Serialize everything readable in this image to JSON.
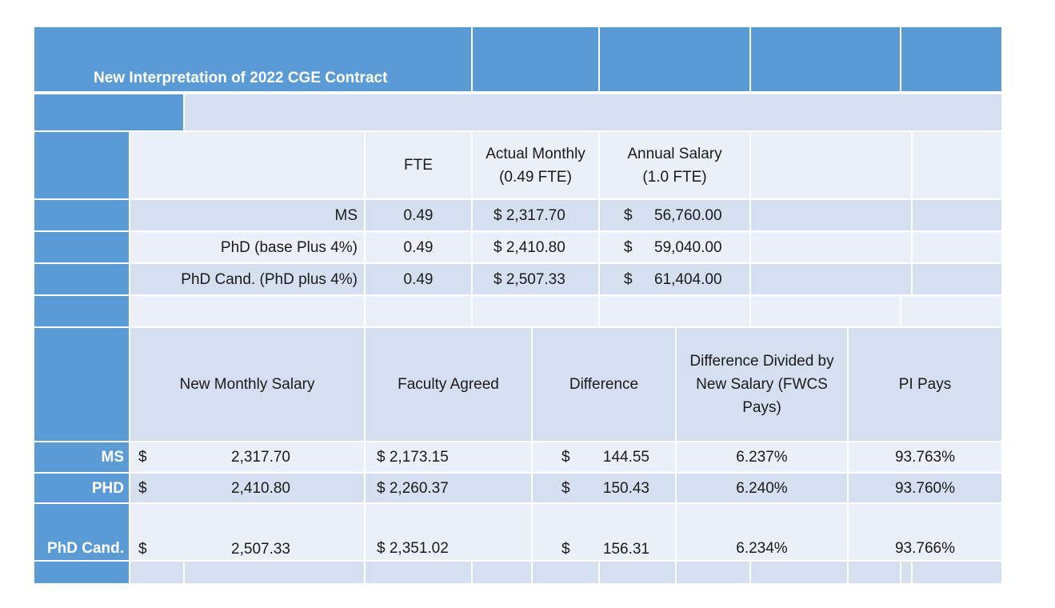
{
  "title": "New Interpretation of 2022 CGE Contract",
  "top_table": {
    "headers": {
      "fte": "FTE",
      "actual_monthly": "Actual Monthly (0.49 FTE)",
      "annual_salary": "Annual Salary (1.0 FTE)"
    },
    "rows": [
      {
        "label": "MS",
        "fte": "0.49",
        "monthly_cur": "$",
        "monthly": "2,317.70",
        "annual_cur": "$",
        "annual": "56,760.00"
      },
      {
        "label": "PhD (base Plus 4%)",
        "fte": "0.49",
        "monthly_cur": "$",
        "monthly": "2,410.80",
        "annual_cur": "$",
        "annual": "59,040.00"
      },
      {
        "label": "PhD Cand. (PhD plus 4%)",
        "fte": "0.49",
        "monthly_cur": "$",
        "monthly": "2,507.33",
        "annual_cur": "$",
        "annual": "61,404.00"
      }
    ]
  },
  "bottom_table": {
    "headers": {
      "new_monthly": "New Monthly Salary",
      "faculty": "Faculty Agreed",
      "difference": "Difference",
      "diff_divided": "Difference Divided by New Salary (FWCS Pays)",
      "pi_pays": "PI Pays"
    },
    "rows": [
      {
        "label": "MS",
        "nm_cur": "$",
        "nm": "2,317.70",
        "fa_cur": "$",
        "fa": "2,173.15",
        "d_cur": "$",
        "d": "144.55",
        "pct": "6.237%",
        "pi": "93.763%"
      },
      {
        "label": "PHD",
        "nm_cur": "$",
        "nm": "2,410.80",
        "fa_cur": "$",
        "fa": "2,260.37",
        "d_cur": "$",
        "d": "150.43",
        "pct": "6.240%",
        "pi": "93.760%"
      },
      {
        "label": "PhD Cand.",
        "nm_cur": "$",
        "nm": "2,507.33",
        "fa_cur": "$",
        "fa": "2,351.02",
        "d_cur": "$",
        "d": "156.31",
        "pct": "6.234%",
        "pi": "93.766%"
      }
    ]
  },
  "colors": {
    "header_blue": "#5b9bd5",
    "light_row": "#d6dff0",
    "lighter_row": "#eaeff8"
  }
}
